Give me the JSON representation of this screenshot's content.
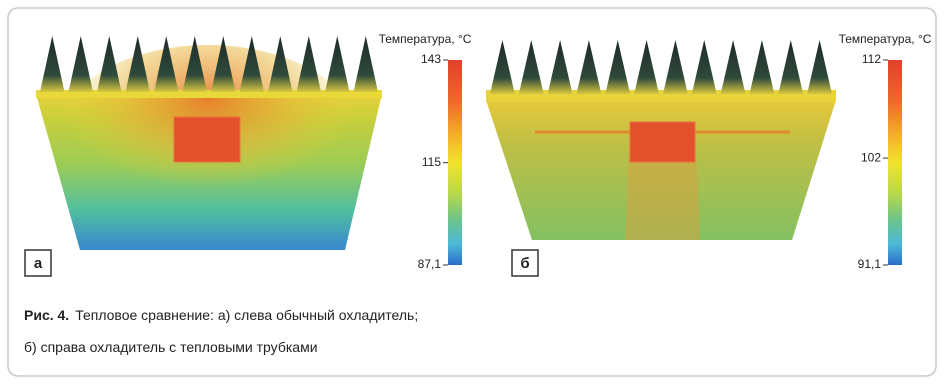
{
  "figure": {
    "panels": [
      {
        "label": "а",
        "scale": {
          "title": "Температура, °С",
          "ticks": [
            143,
            115,
            {
              "value": 87.1,
              "label": "87,1"
            }
          ]
        }
      },
      {
        "label": "б",
        "scale": {
          "title": "Температура, °С",
          "ticks": [
            112,
            102,
            {
              "value": 91.1,
              "label": "91,1"
            }
          ]
        }
      }
    ],
    "caption": {
      "label": "Рис. 4.",
      "lines": [
        "Тепловое сравнение: а) слева обычный охладитель;",
        "б) справа охладитель с тепловыми трубками"
      ]
    }
  }
}
